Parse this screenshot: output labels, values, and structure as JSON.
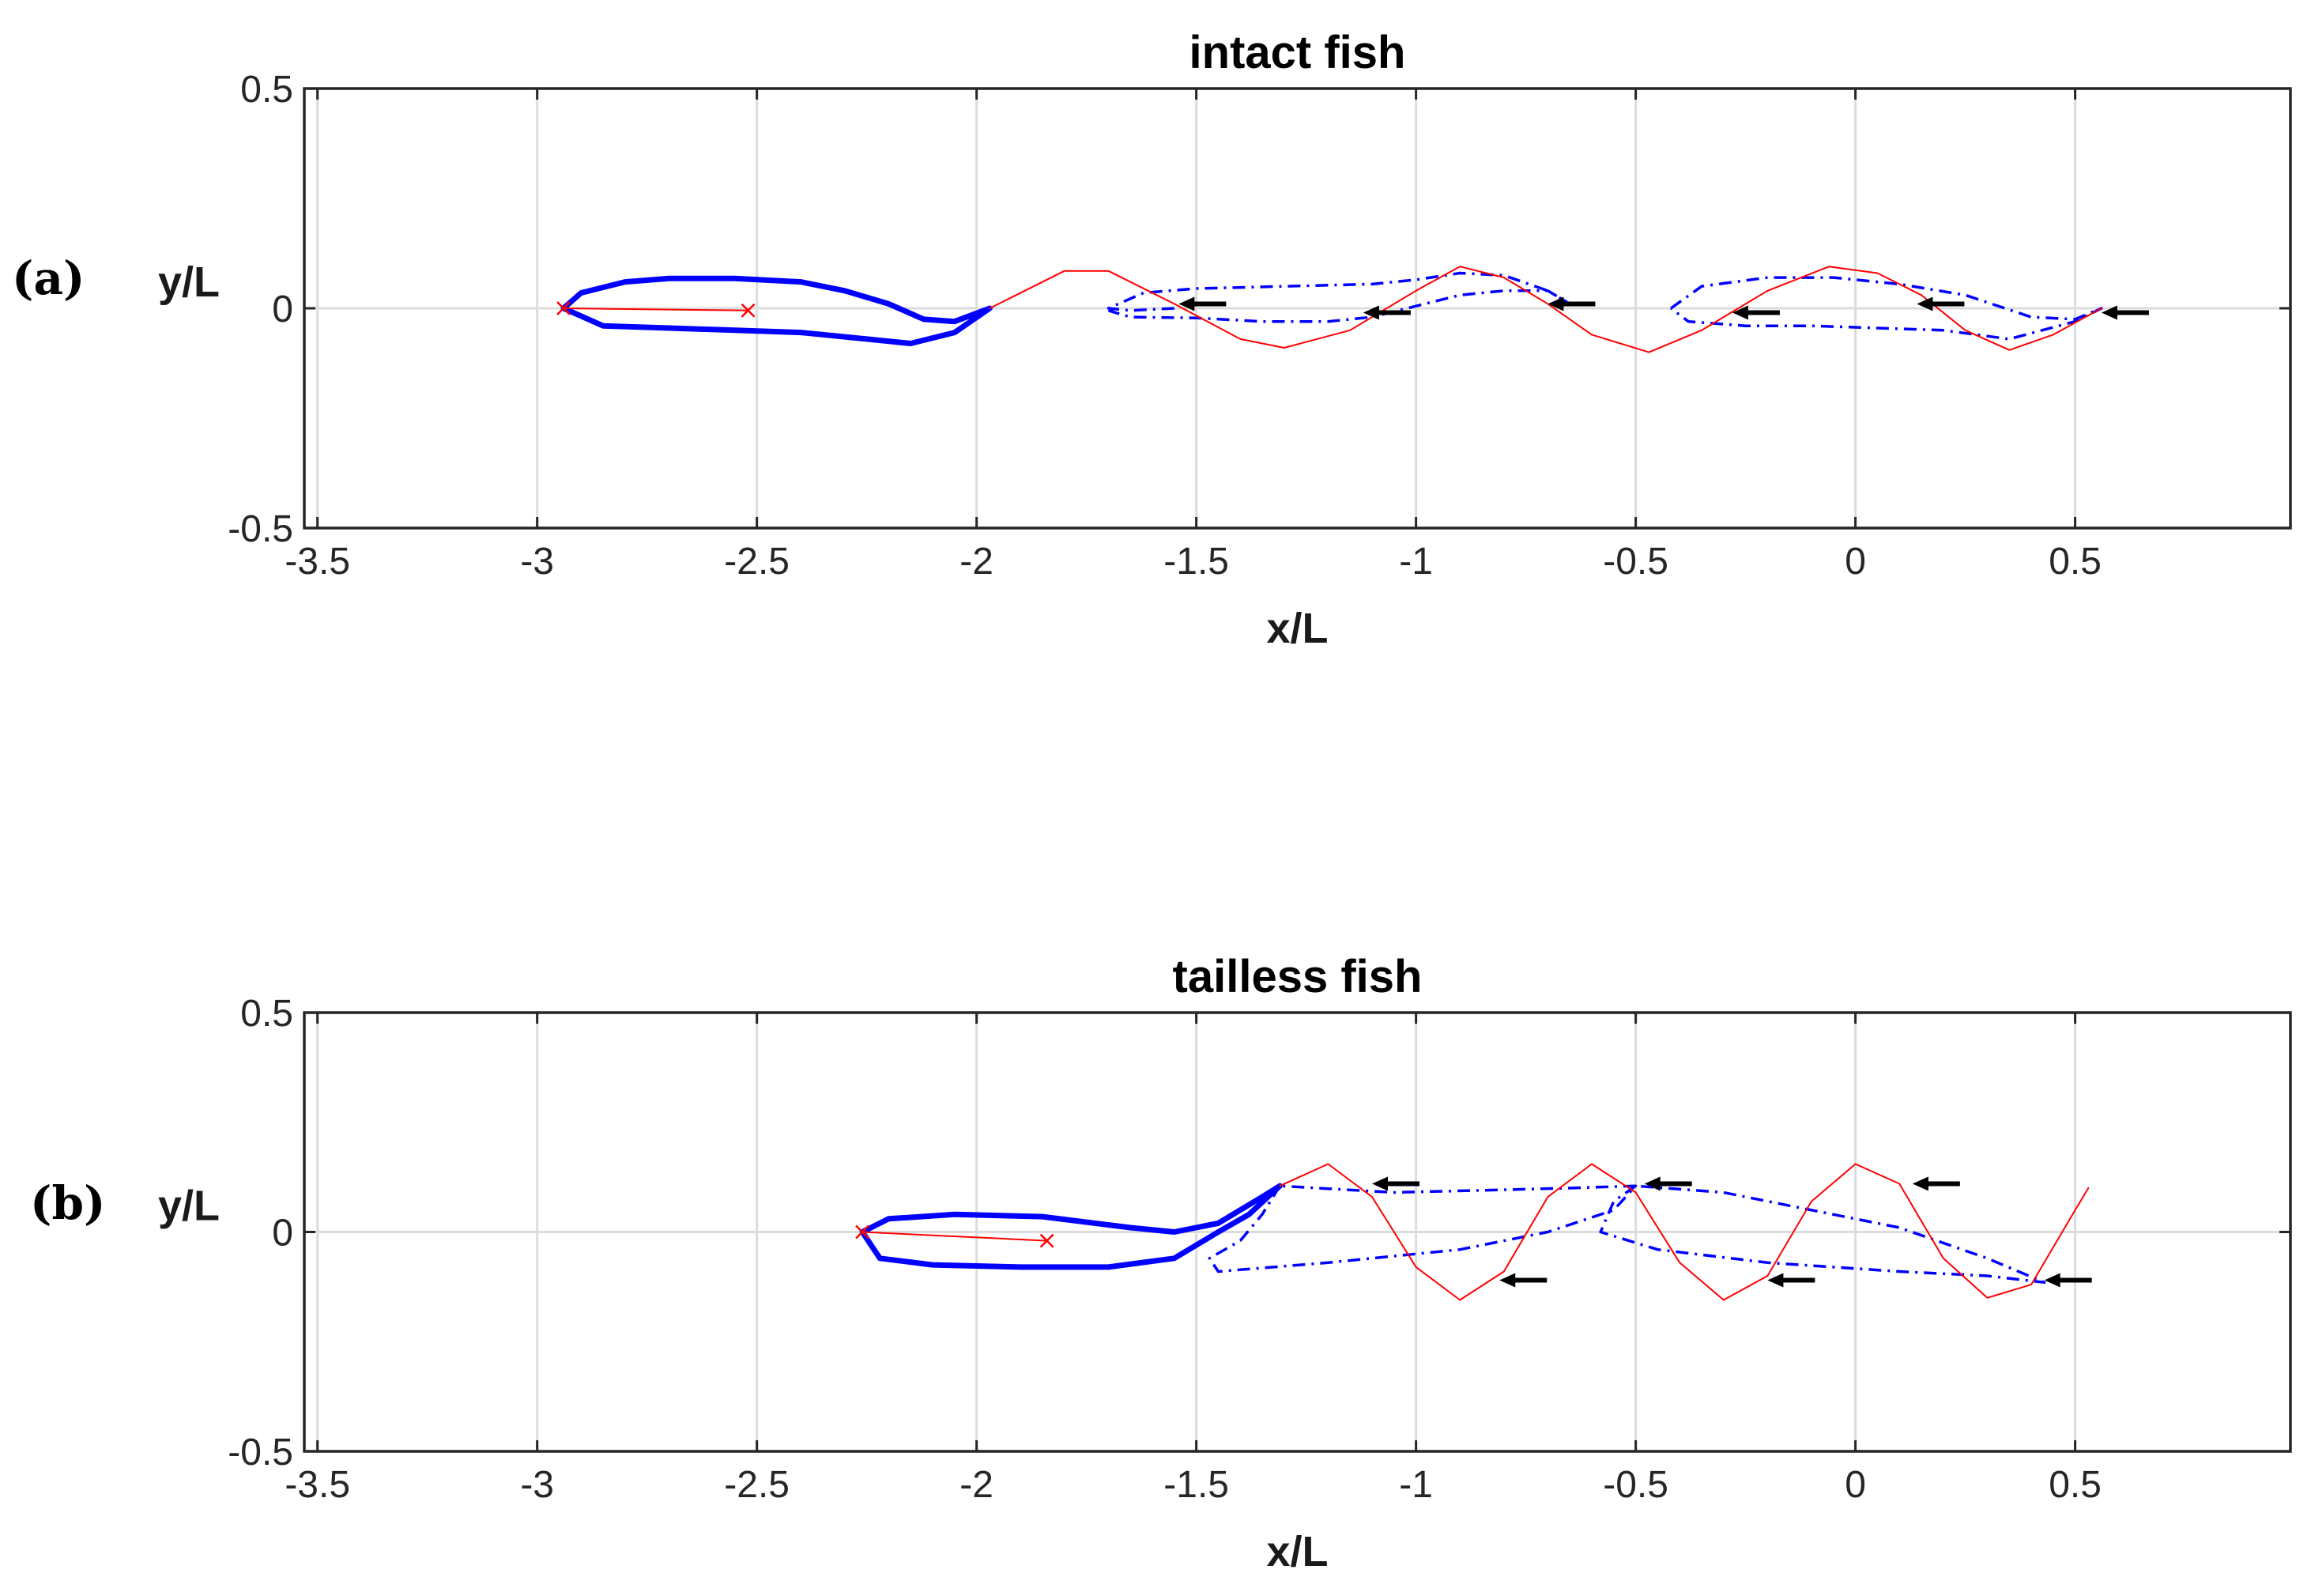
{
  "colors": {
    "body": "#0000ff",
    "wave": "#ff0000",
    "arrow": "#000000",
    "grid": "#dcdcdc",
    "axis": "#262626"
  },
  "chart_data": [
    {
      "panel_label": "(a)",
      "type": "line",
      "title": "intact fish",
      "xlabel": "x/L",
      "ylabel": "y/L",
      "xlim": [
        -3.53,
        0.99
      ],
      "ylim": [
        -0.5,
        0.5
      ],
      "xticks": [
        -3.5,
        -3,
        -2.5,
        -2,
        -1.5,
        -1,
        -0.5,
        0,
        0.5
      ],
      "xtick_labels": [
        "-3.5",
        "-3",
        "-2.5",
        "-2",
        "-1.5",
        "-1",
        "-0.5",
        "0",
        "0.5"
      ],
      "yticks": [
        -0.5,
        0,
        0.5
      ],
      "ytick_labels": [
        "-0.5",
        "0",
        "0.5"
      ],
      "grid": true,
      "series": [
        {
          "style": "solid-thick",
          "color": "#0000ff",
          "points": [
            [
              -2.94,
              0
            ],
            [
              -2.9,
              0.035
            ],
            [
              -2.8,
              0.06
            ],
            [
              -2.7,
              0.068
            ],
            [
              -2.55,
              0.068
            ],
            [
              -2.4,
              0.06
            ],
            [
              -2.3,
              0.04
            ],
            [
              -2.2,
              0.01
            ],
            [
              -2.12,
              -0.025
            ],
            [
              -2.05,
              -0.03
            ],
            [
              -1.97,
              0
            ],
            [
              -2.05,
              -0.055
            ],
            [
              -2.15,
              -0.08
            ],
            [
              -2.25,
              -0.07
            ],
            [
              -2.4,
              -0.055
            ],
            [
              -2.55,
              -0.05
            ],
            [
              -2.7,
              -0.045
            ],
            [
              -2.85,
              -0.04
            ],
            [
              -2.94,
              0
            ]
          ]
        },
        {
          "style": "dashdot",
          "color": "#0000ff",
          "points": [
            [
              -1.55,
              0
            ],
            [
              -1.65,
              -0.005
            ],
            [
              -1.7,
              0
            ],
            [
              -1.62,
              0.035
            ],
            [
              -1.5,
              0.045
            ],
            [
              -1.3,
              0.05
            ],
            [
              -1.1,
              0.055
            ],
            [
              -1.0,
              0.065
            ],
            [
              -0.9,
              0.08
            ],
            [
              -0.8,
              0.075
            ],
            [
              -0.7,
              0.04
            ],
            [
              -0.65,
              0.01
            ],
            [
              -0.7,
              0.04
            ],
            [
              -0.8,
              0.04
            ],
            [
              -0.9,
              0.03
            ],
            [
              -1.0,
              0.005
            ],
            [
              -1.1,
              -0.02
            ],
            [
              -1.2,
              -0.03
            ],
            [
              -1.35,
              -0.03
            ],
            [
              -1.5,
              -0.022
            ],
            [
              -1.65,
              -0.02
            ],
            [
              -1.7,
              -0.005
            ]
          ]
        },
        {
          "style": "dashdot",
          "color": "#0000ff",
          "points": [
            [
              -0.42,
              0
            ],
            [
              -0.35,
              0.05
            ],
            [
              -0.2,
              0.07
            ],
            [
              -0.05,
              0.07
            ],
            [
              0.1,
              0.055
            ],
            [
              0.25,
              0.03
            ],
            [
              0.4,
              -0.02
            ],
            [
              0.5,
              -0.025
            ],
            [
              0.56,
              0
            ],
            [
              0.5,
              -0.03
            ],
            [
              0.35,
              -0.07
            ],
            [
              0.2,
              -0.05
            ],
            [
              0.05,
              -0.045
            ],
            [
              -0.1,
              -0.04
            ],
            [
              -0.25,
              -0.04
            ],
            [
              -0.38,
              -0.03
            ],
            [
              -0.42,
              0
            ]
          ]
        },
        {
          "style": "thin",
          "color": "#ff0000",
          "points": [
            [
              -1.97,
              0
            ],
            [
              -1.8,
              0.085
            ],
            [
              -1.7,
              0.085
            ],
            [
              -1.55,
              0.01
            ],
            [
              -1.4,
              -0.07
            ],
            [
              -1.3,
              -0.09
            ],
            [
              -1.15,
              -0.05
            ],
            [
              -1.0,
              0.04
            ],
            [
              -0.9,
              0.095
            ],
            [
              -0.8,
              0.07
            ],
            [
              -0.7,
              0.01
            ],
            [
              -0.6,
              -0.06
            ],
            [
              -0.47,
              -0.1
            ],
            [
              -0.35,
              -0.05
            ],
            [
              -0.2,
              0.04
            ],
            [
              -0.06,
              0.095
            ],
            [
              0.05,
              0.08
            ],
            [
              0.15,
              0.03
            ],
            [
              0.25,
              -0.05
            ],
            [
              0.35,
              -0.095
            ],
            [
              0.45,
              -0.06
            ],
            [
              0.56,
              0
            ]
          ]
        },
        {
          "style": "thin",
          "color": "#ff0000",
          "points": [
            [
              -2.94,
              0
            ],
            [
              -2.52,
              -0.005
            ]
          ],
          "markers": "x"
        }
      ],
      "arrows": [
        [
          -1.54,
          0.01
        ],
        [
          -1.12,
          -0.01
        ],
        [
          -0.7,
          0.01
        ],
        [
          -0.28,
          -0.01
        ],
        [
          0.14,
          0.01
        ],
        [
          0.56,
          -0.01
        ]
      ]
    },
    {
      "panel_label": "(b)",
      "type": "line",
      "title": "tailless fish",
      "xlabel": "x/L",
      "ylabel": "y/L",
      "xlim": [
        -3.53,
        0.99
      ],
      "ylim": [
        -0.5,
        0.5
      ],
      "xticks": [
        -3.5,
        -3,
        -2.5,
        -2,
        -1.5,
        -1,
        -0.5,
        0,
        0.5
      ],
      "xtick_labels": [
        "-3.5",
        "-3",
        "-2.5",
        "-2",
        "-1.5",
        "-1",
        "-0.5",
        "0",
        "0.5"
      ],
      "yticks": [
        -0.5,
        0,
        0.5
      ],
      "ytick_labels": [
        "-0.5",
        "0",
        "0.5"
      ],
      "grid": true,
      "series": [
        {
          "style": "solid-thick",
          "color": "#0000ff",
          "points": [
            [
              -2.26,
              0
            ],
            [
              -2.2,
              0.03
            ],
            [
              -2.05,
              0.04
            ],
            [
              -1.85,
              0.035
            ],
            [
              -1.65,
              0.01
            ],
            [
              -1.55,
              0
            ],
            [
              -1.45,
              0.02
            ],
            [
              -1.35,
              0.08
            ],
            [
              -1.31,
              0.105
            ],
            [
              -1.38,
              0.04
            ],
            [
              -1.45,
              0
            ],
            [
              -1.55,
              -0.06
            ],
            [
              -1.7,
              -0.08
            ],
            [
              -1.9,
              -0.08
            ],
            [
              -2.1,
              -0.075
            ],
            [
              -2.22,
              -0.06
            ],
            [
              -2.26,
              0
            ]
          ]
        },
        {
          "style": "dashdot",
          "color": "#0000ff",
          "points": [
            [
              -1.31,
              0.105
            ],
            [
              -1.35,
              0.04
            ],
            [
              -1.4,
              -0.02
            ],
            [
              -1.47,
              -0.06
            ],
            [
              -1.45,
              -0.09
            ],
            [
              -1.2,
              -0.07
            ],
            [
              -0.9,
              -0.04
            ],
            [
              -0.7,
              0
            ],
            [
              -0.55,
              0.05
            ],
            [
              -0.5,
              0.105
            ],
            [
              -0.65,
              0.1
            ],
            [
              -0.85,
              0.095
            ],
            [
              -1.05,
              0.09
            ],
            [
              -1.31,
              0.105
            ]
          ]
        },
        {
          "style": "dashdot",
          "color": "#0000ff",
          "points": [
            [
              -0.5,
              0.105
            ],
            [
              -0.55,
              0.07
            ],
            [
              -0.58,
              0
            ],
            [
              -0.45,
              -0.04
            ],
            [
              -0.2,
              -0.07
            ],
            [
              0.1,
              -0.09
            ],
            [
              0.3,
              -0.1
            ],
            [
              0.43,
              -0.115
            ],
            [
              0.3,
              -0.06
            ],
            [
              0.1,
              0.01
            ],
            [
              -0.1,
              0.05
            ],
            [
              -0.3,
              0.09
            ],
            [
              -0.5,
              0.105
            ]
          ]
        },
        {
          "style": "thin",
          "color": "#ff0000",
          "points": [
            [
              -1.31,
              0.105
            ],
            [
              -1.2,
              0.155
            ],
            [
              -1.1,
              0.08
            ],
            [
              -1.0,
              -0.08
            ],
            [
              -0.9,
              -0.155
            ],
            [
              -0.8,
              -0.09
            ],
            [
              -0.7,
              0.08
            ],
            [
              -0.6,
              0.155
            ],
            [
              -0.5,
              0.09
            ],
            [
              -0.4,
              -0.07
            ],
            [
              -0.3,
              -0.155
            ],
            [
              -0.2,
              -0.1
            ],
            [
              -0.1,
              0.07
            ],
            [
              0.0,
              0.155
            ],
            [
              0.1,
              0.11
            ],
            [
              0.2,
              -0.06
            ],
            [
              0.3,
              -0.15
            ],
            [
              0.4,
              -0.12
            ],
            [
              0.5,
              0.05
            ],
            [
              0.53,
              0.1
            ]
          ]
        },
        {
          "style": "thin",
          "color": "#ff0000",
          "points": [
            [
              -2.26,
              0
            ],
            [
              -1.84,
              -0.02
            ]
          ],
          "markers": "x"
        }
      ],
      "arrows": [
        [
          -1.1,
          0.11
        ],
        [
          -0.81,
          -0.11
        ],
        [
          -0.48,
          0.11
        ],
        [
          -0.2,
          -0.11
        ],
        [
          0.13,
          0.11
        ],
        [
          0.43,
          -0.11
        ]
      ]
    }
  ]
}
